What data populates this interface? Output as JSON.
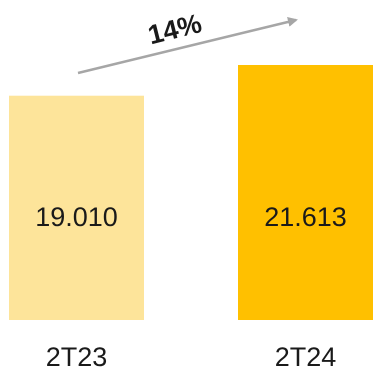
{
  "chart_data": {
    "type": "bar",
    "categories": [
      "2T23",
      "2T24"
    ],
    "values": [
      19010,
      21613
    ],
    "value_labels": [
      "19.010",
      "21.613"
    ],
    "colors": [
      "#FDE49A",
      "#FFC000"
    ],
    "growth_label": "14%",
    "arrow_color": "#A6A6A6",
    "ylim": [
      0,
      21613
    ],
    "grid": false,
    "legend": "none"
  }
}
